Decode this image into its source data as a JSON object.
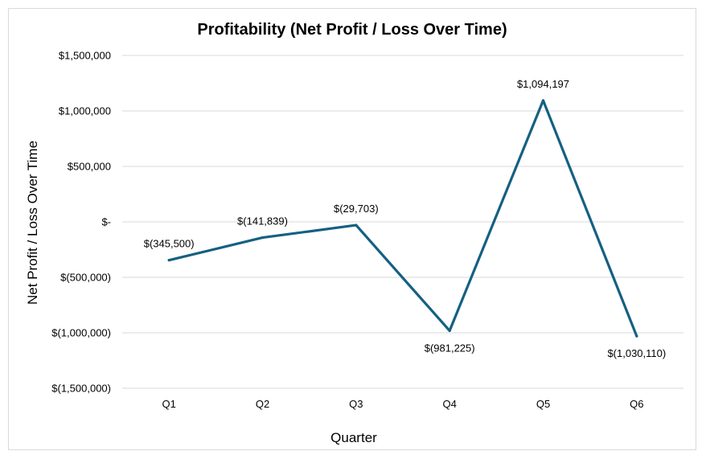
{
  "chart_data": {
    "type": "line",
    "title": "Profitability (Net Profit / Loss Over Time)",
    "xlabel": "Quarter",
    "ylabel": "Net Profit / Loss Over Time",
    "categories": [
      "Q1",
      "Q2",
      "Q3",
      "Q4",
      "Q5",
      "Q6"
    ],
    "values": [
      -345500,
      -141839,
      -29703,
      -981225,
      1094197,
      -1030110
    ],
    "data_labels": [
      "$(345,500)",
      "$(141,839)",
      "$(29,703)",
      "$(981,225)",
      "$1,094,197",
      "$(1,030,110)"
    ],
    "ylim": [
      -1500000,
      1500000
    ],
    "y_ticks": [
      1500000,
      1000000,
      500000,
      0,
      -500000,
      -1000000,
      -1500000
    ],
    "y_tick_labels": [
      "$1,500,000",
      "$1,000,000",
      "$500,000",
      "$-",
      "$(500,000)",
      "$(1,000,000)",
      "$(1,500,000)"
    ],
    "grid": true,
    "legend": "none",
    "line_color": "#156082"
  }
}
